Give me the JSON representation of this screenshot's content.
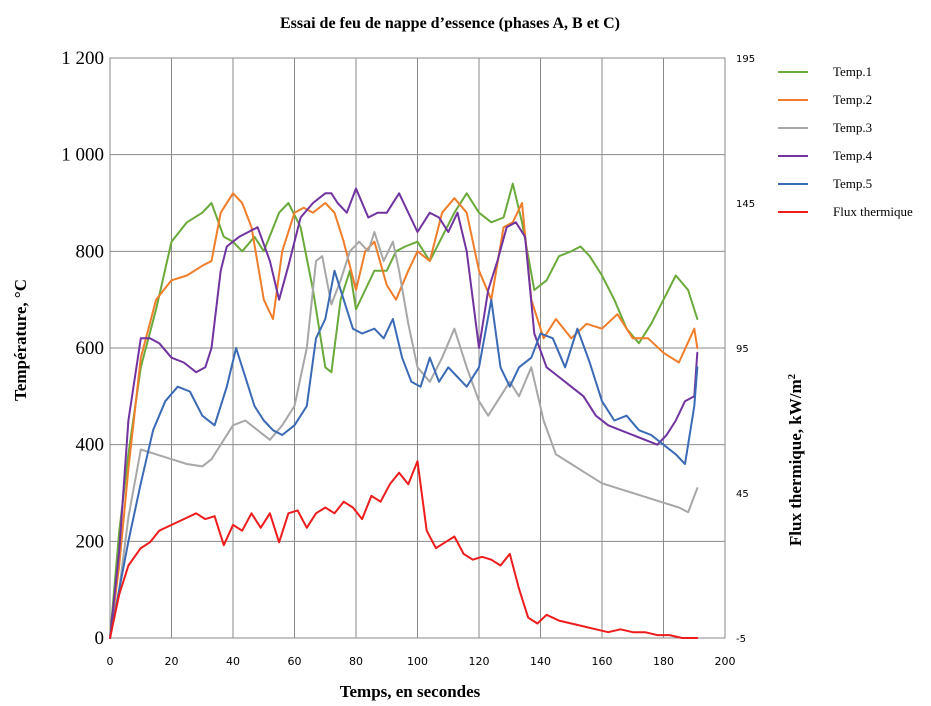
{
  "chart_data": {
    "type": "line",
    "title": "Essai de feu de nappe d’essence (phases A, B et C)",
    "xlabel": "Temps, en secondes",
    "ylabel": "Température, °C",
    "y2label": "Flux thermique, kW/m",
    "y2label_sup": "2",
    "xlim": [
      0,
      200
    ],
    "ylim": [
      0,
      1200
    ],
    "y2lim": [
      -5,
      195
    ],
    "x_ticks": [
      "0",
      "20",
      "40",
      "60",
      "80",
      "100",
      "120",
      "140",
      "160",
      "180",
      "200"
    ],
    "y_ticks": [
      "0",
      "200",
      "400",
      "600",
      "800",
      "1 000",
      "1 200"
    ],
    "y2_ticks": [
      "-5",
      "45",
      "95",
      "145",
      "195"
    ],
    "grid": true,
    "legend_position": "right",
    "series": [
      {
        "name": "Temp.1",
        "color": "#6aaa3a",
        "axis": "left",
        "x": [
          0,
          3,
          6,
          10,
          15,
          20,
          25,
          30,
          33,
          37,
          40,
          43,
          47,
          50,
          55,
          58,
          62,
          66,
          70,
          72,
          75,
          78,
          80,
          83,
          86,
          90,
          93,
          96,
          100,
          104,
          108,
          112,
          116,
          120,
          124,
          128,
          131,
          134,
          138,
          142,
          146,
          150,
          153,
          156,
          160,
          164,
          168,
          172,
          176,
          180,
          184,
          188,
          191
        ],
        "y": [
          0,
          220,
          380,
          560,
          680,
          820,
          860,
          880,
          900,
          830,
          820,
          800,
          830,
          800,
          880,
          900,
          850,
          720,
          560,
          550,
          700,
          760,
          680,
          720,
          760,
          760,
          800,
          810,
          820,
          780,
          830,
          880,
          920,
          880,
          860,
          870,
          940,
          860,
          720,
          740,
          790,
          800,
          810,
          790,
          750,
          700,
          640,
          610,
          650,
          700,
          750,
          720,
          660
        ]
      },
      {
        "name": "Temp.2",
        "color": "#f07d2a",
        "axis": "left",
        "x": [
          0,
          3,
          6,
          10,
          15,
          20,
          25,
          30,
          33,
          36,
          40,
          43,
          46,
          50,
          53,
          56,
          60,
          63,
          66,
          70,
          73,
          76,
          80,
          83,
          86,
          90,
          93,
          97,
          100,
          104,
          108,
          112,
          116,
          120,
          124,
          128,
          131,
          134,
          137,
          141,
          145,
          150,
          155,
          160,
          165,
          170,
          175,
          180,
          185,
          190,
          191
        ],
        "y": [
          0,
          150,
          350,
          580,
          700,
          740,
          750,
          770,
          780,
          880,
          920,
          900,
          850,
          700,
          660,
          800,
          880,
          890,
          880,
          900,
          880,
          820,
          720,
          800,
          820,
          730,
          700,
          760,
          800,
          780,
          880,
          910,
          880,
          760,
          700,
          850,
          860,
          900,
          700,
          620,
          660,
          620,
          650,
          640,
          670,
          620,
          620,
          590,
          570,
          640,
          600
        ]
      },
      {
        "name": "Temp.3",
        "color": "#a7a7a7",
        "axis": "left",
        "x": [
          0,
          3,
          6,
          10,
          15,
          20,
          25,
          30,
          33,
          37,
          40,
          44,
          48,
          52,
          56,
          60,
          64,
          67,
          69,
          72,
          75,
          78,
          81,
          84,
          86,
          89,
          92,
          94,
          97,
          100,
          104,
          108,
          112,
          116,
          120,
          123,
          127,
          130,
          133,
          137,
          141,
          145,
          150,
          155,
          160,
          165,
          170,
          175,
          180,
          185,
          188,
          191
        ],
        "y": [
          0,
          100,
          250,
          390,
          380,
          370,
          360,
          355,
          370,
          410,
          440,
          450,
          430,
          410,
          440,
          480,
          600,
          780,
          790,
          690,
          740,
          800,
          820,
          800,
          840,
          780,
          820,
          760,
          650,
          560,
          530,
          580,
          640,
          560,
          490,
          460,
          500,
          530,
          500,
          560,
          450,
          380,
          360,
          340,
          320,
          310,
          300,
          290,
          280,
          270,
          260,
          310
        ]
      },
      {
        "name": "Temp.4",
        "color": "#7033a0",
        "axis": "left",
        "x": [
          0,
          3,
          6,
          10,
          13,
          16,
          20,
          24,
          28,
          31,
          33,
          36,
          38,
          42,
          45,
          48,
          52,
          55,
          58,
          62,
          66,
          70,
          72,
          74,
          77,
          80,
          84,
          87,
          90,
          94,
          97,
          100,
          104,
          107,
          110,
          113,
          116,
          120,
          123,
          126,
          129,
          132,
          135,
          138,
          142,
          146,
          150,
          154,
          158,
          162,
          166,
          170,
          174,
          178,
          181,
          184,
          187,
          190,
          191
        ],
        "y": [
          0,
          180,
          450,
          620,
          620,
          610,
          580,
          570,
          550,
          560,
          600,
          760,
          810,
          830,
          840,
          850,
          780,
          700,
          770,
          870,
          900,
          920,
          920,
          900,
          880,
          930,
          870,
          880,
          880,
          920,
          880,
          840,
          880,
          870,
          840,
          880,
          800,
          600,
          720,
          780,
          850,
          860,
          830,
          630,
          560,
          540,
          520,
          500,
          460,
          440,
          430,
          420,
          410,
          400,
          420,
          450,
          490,
          500,
          590
        ]
      },
      {
        "name": "Temp.5",
        "color": "#3a6ab5",
        "axis": "left",
        "x": [
          0,
          3,
          6,
          10,
          14,
          18,
          22,
          26,
          30,
          34,
          38,
          41,
          44,
          47,
          50,
          53,
          56,
          60,
          64,
          67,
          70,
          73,
          76,
          79,
          82,
          86,
          89,
          92,
          95,
          98,
          101,
          104,
          107,
          110,
          113,
          116,
          120,
          124,
          127,
          130,
          133,
          137,
          140,
          144,
          148,
          152,
          156,
          160,
          164,
          168,
          172,
          176,
          180,
          184,
          187,
          190,
          191
        ],
        "y": [
          0,
          100,
          200,
          320,
          430,
          490,
          520,
          510,
          460,
          440,
          520,
          600,
          540,
          480,
          450,
          430,
          420,
          440,
          480,
          620,
          660,
          760,
          700,
          640,
          630,
          640,
          620,
          660,
          580,
          530,
          520,
          580,
          530,
          560,
          540,
          520,
          560,
          700,
          560,
          520,
          560,
          580,
          630,
          620,
          560,
          640,
          570,
          490,
          450,
          460,
          430,
          420,
          400,
          380,
          360,
          480,
          560
        ]
      },
      {
        "name": "Flux thermique",
        "color": "#ee1c1c",
        "axis": "right",
        "x": [
          0,
          3,
          6,
          10,
          13,
          16,
          20,
          24,
          28,
          31,
          34,
          37,
          40,
          43,
          46,
          49,
          52,
          55,
          58,
          61,
          64,
          67,
          70,
          73,
          76,
          79,
          82,
          85,
          88,
          91,
          94,
          97,
          100,
          103,
          106,
          109,
          112,
          115,
          118,
          121,
          124,
          127,
          130,
          133,
          136,
          139,
          142,
          146,
          150,
          154,
          158,
          162,
          166,
          170,
          174,
          178,
          182,
          186,
          190,
          191
        ],
        "y": [
          -5,
          10,
          20,
          26,
          28,
          32,
          34,
          36,
          38,
          36,
          37,
          27,
          34,
          32,
          38,
          33,
          38,
          28,
          38,
          39,
          33,
          38,
          40,
          38,
          42,
          40,
          36,
          44,
          42,
          48,
          52,
          48,
          56,
          32,
          26,
          28,
          30,
          24,
          22,
          23,
          22,
          20,
          24,
          12,
          2,
          0,
          3,
          1,
          0,
          -1,
          -2,
          -3,
          -2,
          -3,
          -3,
          -4,
          -4,
          -5,
          -5,
          -5
        ]
      }
    ]
  }
}
